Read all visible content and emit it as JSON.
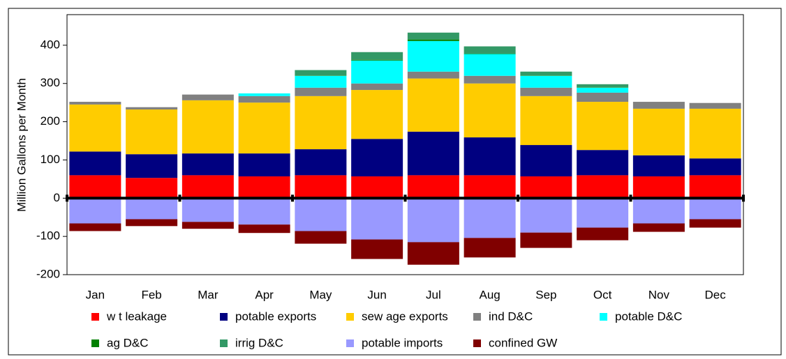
{
  "chart_data": {
    "type": "stacked_bar",
    "y_label": "Million Gallons per Month",
    "categories": [
      "Jan",
      "Feb",
      "Mar",
      "Apr",
      "May",
      "Jun",
      "Jul",
      "Aug",
      "Sep",
      "Oct",
      "Nov",
      "Dec"
    ],
    "ylim": [
      -200,
      480
    ],
    "yticks": [
      -200,
      -100,
      0,
      100,
      200,
      300,
      400
    ],
    "series": [
      {
        "name": "w t leakage",
        "color": "#ff0000",
        "values": [
          60,
          53,
          60,
          57,
          60,
          57,
          60,
          60,
          57,
          60,
          57,
          60
        ]
      },
      {
        "name": "potable exports",
        "color": "#000080",
        "values": [
          62,
          62,
          57,
          60,
          68,
          98,
          114,
          99,
          82,
          66,
          55,
          44
        ]
      },
      {
        "name": "sew age exports",
        "color": "#ffcc00",
        "values": [
          123,
          117,
          139,
          133,
          139,
          128,
          139,
          141,
          128,
          126,
          122,
          130
        ]
      },
      {
        "name": "ind D&C",
        "color": "#808080",
        "values": [
          7,
          6,
          15,
          17,
          22,
          17,
          18,
          20,
          22,
          24,
          18,
          15
        ]
      },
      {
        "name": "potable D&C",
        "color": "#00ffff",
        "values": [
          0,
          0,
          0,
          7,
          31,
          60,
          80,
          57,
          31,
          13,
          0,
          0
        ]
      },
      {
        "name": "ag D&C",
        "color": "#008000",
        "values": [
          0,
          0,
          0,
          0,
          1,
          2,
          4,
          1,
          1,
          1,
          0,
          0
        ]
      },
      {
        "name": "irrig D&C",
        "color": "#339966",
        "values": [
          0,
          0,
          0,
          0,
          14,
          20,
          18,
          19,
          10,
          8,
          0,
          0
        ]
      },
      {
        "name": "potable imports",
        "color": "#9999ff",
        "values": [
          -66,
          -55,
          -62,
          -69,
          -86,
          -108,
          -115,
          -104,
          -90,
          -77,
          -66,
          -55
        ]
      },
      {
        "name": "confined GW",
        "color": "#800000",
        "values": [
          -20,
          -18,
          -18,
          -22,
          -33,
          -51,
          -59,
          -51,
          -40,
          -33,
          -22,
          -22
        ]
      }
    ]
  }
}
